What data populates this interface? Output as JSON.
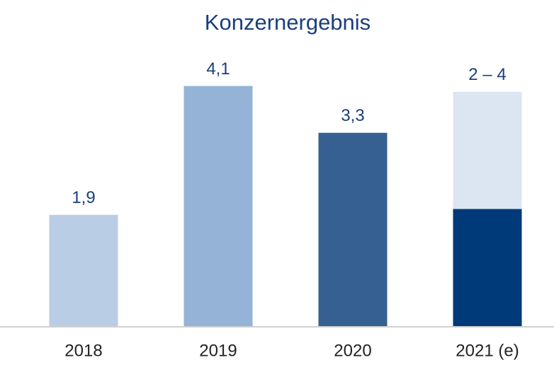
{
  "chart_data": {
    "type": "bar",
    "title": "Konzernergebnis",
    "categories": [
      "2018",
      "2019",
      "2020",
      "2021 (e)"
    ],
    "series": [
      {
        "color": [
          "#b9cde5",
          "#95b3d7",
          "#366092",
          "#003a78"
        ],
        "values": [
          1.9,
          4.1,
          3.3,
          2
        ]
      },
      {
        "color": [
          "#dce6f2",
          "#dce6f2",
          "#dce6f2",
          "#dce6f2"
        ],
        "values": [
          null,
          null,
          null,
          2
        ]
      }
    ],
    "value_labels": [
      "1,9",
      "4,1",
      "3,3",
      "2 – 4"
    ],
    "ylim": [
      0,
      5
    ]
  }
}
